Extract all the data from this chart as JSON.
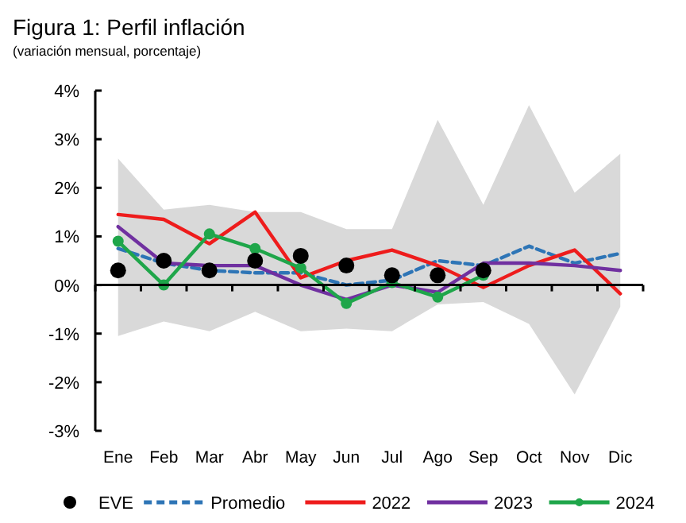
{
  "chart_data": {
    "type": "line",
    "title": "Figura 1: Perfil inflación",
    "subtitle": "(variación mensual, porcentaje)",
    "categories": [
      "Ene",
      "Feb",
      "Mar",
      "Abr",
      "May",
      "Jun",
      "Jul",
      "Ago",
      "Sep",
      "Oct",
      "Nov",
      "Dic"
    ],
    "series": [
      {
        "name": "EVE",
        "type": "scatter",
        "color": "#000000",
        "marker": "circle",
        "values": [
          0.3,
          0.5,
          0.3,
          0.5,
          0.6,
          0.4,
          0.2,
          0.2,
          0.3,
          null,
          null,
          null
        ]
      },
      {
        "name": "Promedio",
        "color": "#2e75b6",
        "line_style": "dashed",
        "values": [
          0.75,
          0.45,
          0.3,
          0.25,
          0.25,
          0.0,
          0.1,
          0.5,
          0.4,
          0.8,
          0.45,
          0.65
        ],
        "lower": [
          -1.05,
          -0.75,
          -0.95,
          -0.55,
          -0.95,
          -0.9,
          -0.95,
          -0.4,
          -0.35,
          -0.8,
          -2.25,
          -0.45
        ],
        "upper": [
          2.6,
          1.55,
          1.65,
          1.5,
          1.5,
          1.15,
          1.15,
          3.4,
          1.65,
          3.7,
          1.9,
          2.7
        ]
      },
      {
        "name": "2022",
        "color": "#ee1c1c",
        "values": [
          1.45,
          1.35,
          0.85,
          1.5,
          0.15,
          0.5,
          0.72,
          0.4,
          -0.05,
          0.4,
          0.72,
          -0.18
        ]
      },
      {
        "name": "2023",
        "color": "#7030a0",
        "values": [
          1.2,
          0.45,
          0.4,
          0.4,
          0.0,
          -0.3,
          0.0,
          -0.15,
          0.45,
          0.45,
          0.4,
          0.3
        ]
      },
      {
        "name": "2024",
        "color": "#1fa64a",
        "marker": "circle",
        "values": [
          0.9,
          0.0,
          1.05,
          0.75,
          0.35,
          -0.38,
          0.05,
          -0.25,
          0.2,
          null,
          null,
          null
        ]
      }
    ],
    "ylim": [
      -3,
      4
    ],
    "yticks": [
      {
        "value": -3,
        "label": "-3%"
      },
      {
        "value": -2,
        "label": "-2%"
      },
      {
        "value": -1,
        "label": "-1%"
      },
      {
        "value": 0,
        "label": "0%"
      },
      {
        "value": 1,
        "label": "1%"
      },
      {
        "value": 2,
        "label": "2%"
      },
      {
        "value": 3,
        "label": "3%"
      },
      {
        "value": 4,
        "label": "4%"
      }
    ],
    "legend": "bottom"
  }
}
